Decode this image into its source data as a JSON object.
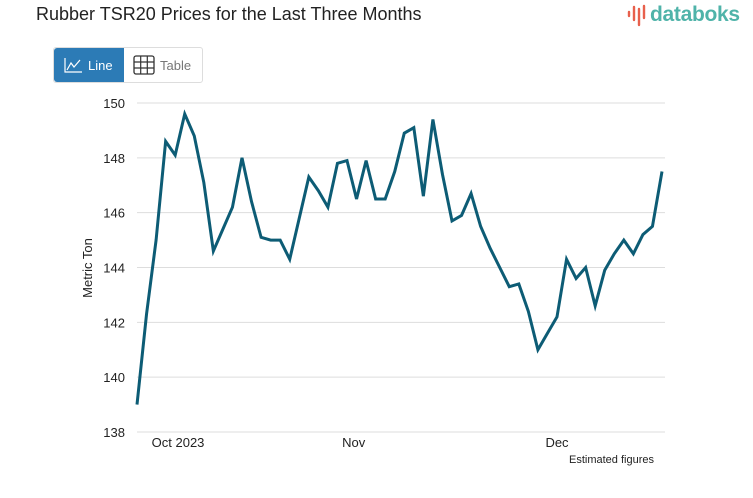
{
  "header": {
    "title": "Rubber TSR20 Prices for the Last Three Months",
    "logo": "databoks"
  },
  "toggle": {
    "line_label": "Line",
    "table_label": "Table"
  },
  "footer": {
    "note": "Estimated figures"
  },
  "colors": {
    "line": "#0d5c75",
    "accent": "#2c7bb6",
    "logo_text": "#4fb3a9",
    "logo_bars": "#e8604c"
  },
  "chart_data": {
    "type": "line",
    "title": "Rubber TSR20 Prices for the Last Three Months",
    "xlabel": "",
    "ylabel": "Metric Ton",
    "ylim": [
      138,
      150
    ],
    "yticks": [
      138,
      140,
      142,
      144,
      146,
      148,
      150
    ],
    "ytick_labels": [
      "138",
      "140",
      "142",
      "144",
      "146",
      "148",
      "150"
    ],
    "xticks": [
      {
        "label": "Oct 2023",
        "at": 4.3
      },
      {
        "label": "Nov",
        "at": 22.7
      },
      {
        "label": "Dec",
        "at": 44
      }
    ],
    "grid": true,
    "series": [
      {
        "name": "Rubber TSR20",
        "values": [
          139.0,
          142.3,
          145.0,
          148.6,
          148.1,
          149.6,
          148.8,
          147.1,
          144.6,
          145.4,
          146.2,
          148.0,
          146.4,
          145.1,
          145.0,
          145.0,
          144.3,
          145.8,
          147.3,
          146.8,
          146.2,
          147.8,
          147.9,
          146.5,
          147.9,
          146.5,
          146.5,
          147.5,
          148.9,
          149.1,
          146.6,
          149.4,
          147.4,
          145.7,
          145.9,
          146.7,
          145.5,
          144.7,
          144.0,
          143.3,
          143.4,
          142.4,
          141.0,
          141.6,
          142.2,
          144.3,
          143.6,
          144.0,
          142.6,
          143.9,
          144.5,
          145.0,
          144.5,
          145.2,
          145.5,
          147.5
        ]
      }
    ]
  }
}
